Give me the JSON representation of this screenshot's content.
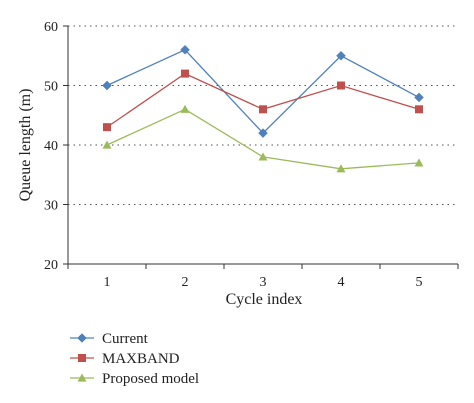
{
  "chart_data": {
    "type": "line",
    "title": "",
    "xlabel": "Cycle index",
    "ylabel": "Queue length (m)",
    "x": [
      1,
      2,
      3,
      4,
      5
    ],
    "ylim": [
      20,
      60
    ],
    "yticks": [
      20,
      30,
      40,
      50,
      60
    ],
    "grid": "horizontal dotted",
    "legend_position": "bottom-left",
    "series": [
      {
        "name": "Current",
        "values": [
          50,
          56,
          42,
          55,
          48
        ],
        "color": "#4f81bd",
        "marker": "diamond"
      },
      {
        "name": "MAXBAND",
        "values": [
          43,
          52,
          46,
          50,
          46
        ],
        "color": "#c0504d",
        "marker": "square"
      },
      {
        "name": "Proposed model",
        "values": [
          40,
          46,
          38,
          36,
          37
        ],
        "color": "#9bbb59",
        "marker": "triangle"
      }
    ]
  }
}
